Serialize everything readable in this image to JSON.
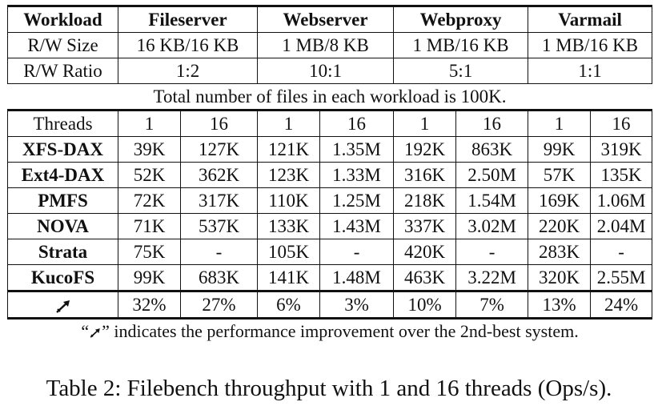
{
  "table": {
    "header": {
      "label": "Workload",
      "workloads": [
        "Fileserver",
        "Webserver",
        "Webproxy",
        "Varmail"
      ]
    },
    "rw_size": {
      "label": "R/W Size",
      "values": [
        "16 KB/16 KB",
        "1 MB/8 KB",
        "1 MB/16 KB",
        "1 MB/16 KB"
      ]
    },
    "rw_ratio": {
      "label": "R/W Ratio",
      "values": [
        "1:2",
        "10:1",
        "5:1",
        "1:1"
      ]
    },
    "files_note": "Total number of files in each workload is 100K.",
    "threads": {
      "label": "Threads",
      "values": [
        "1",
        "16",
        "1",
        "16",
        "1",
        "16",
        "1",
        "16"
      ]
    },
    "rows": [
      {
        "system": "XFS-DAX",
        "values": [
          "39K",
          "127K",
          "121K",
          "1.35M",
          "192K",
          "863K",
          "99K",
          "319K"
        ]
      },
      {
        "system": "Ext4-DAX",
        "values": [
          "52K",
          "362K",
          "123K",
          "1.33M",
          "316K",
          "2.50M",
          "57K",
          "135K"
        ]
      },
      {
        "system": "PMFS",
        "values": [
          "72K",
          "317K",
          "110K",
          "1.25M",
          "218K",
          "1.54M",
          "169K",
          "1.06M"
        ]
      },
      {
        "system": "NOVA",
        "values": [
          "71K",
          "537K",
          "133K",
          "1.43M",
          "337K",
          "3.02M",
          "220K",
          "2.04M"
        ]
      },
      {
        "system": "Strata",
        "values": [
          "75K",
          "-",
          "105K",
          "-",
          "420K",
          "-",
          "283K",
          "-"
        ]
      },
      {
        "system": "KucoFS",
        "values": [
          "99K",
          "683K",
          "141K",
          "1.48M",
          "463K",
          "3.22M",
          "320K",
          "2.55M"
        ]
      }
    ],
    "improvement": {
      "icon": "upward-arrow-icon",
      "values": [
        "32%",
        "27%",
        "6%",
        "3%",
        "10%",
        "7%",
        "13%",
        "24%"
      ]
    },
    "footnote": {
      "quote_open": "“",
      "text": "” indicates the performance improvement over the 2nd-best system."
    }
  },
  "caption": "Table 2: Filebench throughput with 1 and 16 threads (Ops/s)."
}
